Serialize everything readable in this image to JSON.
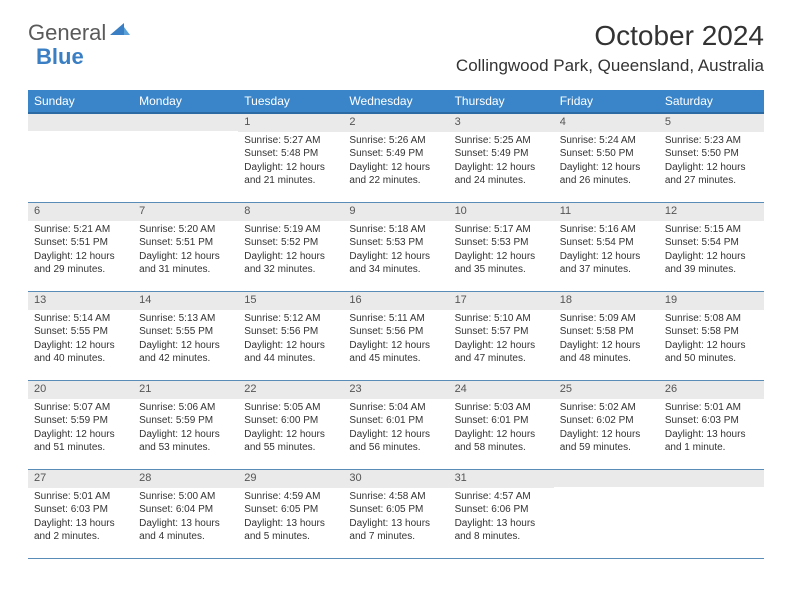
{
  "brand": {
    "part1": "General",
    "part2": "Blue",
    "color_gray": "#5a5a5a",
    "color_blue": "#3a7fc4"
  },
  "title": "October 2024",
  "location": "Collingwood Park, Queensland, Australia",
  "colors": {
    "header_bg": "#3a85c9",
    "header_border": "#2c6aa3",
    "row_border": "#5a8cb8",
    "daynum_bg": "#eaeaea",
    "text": "#333333"
  },
  "day_headers": [
    "Sunday",
    "Monday",
    "Tuesday",
    "Wednesday",
    "Thursday",
    "Friday",
    "Saturday"
  ],
  "weeks": [
    [
      null,
      null,
      {
        "n": "1",
        "sr": "Sunrise: 5:27 AM",
        "ss": "Sunset: 5:48 PM",
        "d1": "Daylight: 12 hours",
        "d2": "and 21 minutes."
      },
      {
        "n": "2",
        "sr": "Sunrise: 5:26 AM",
        "ss": "Sunset: 5:49 PM",
        "d1": "Daylight: 12 hours",
        "d2": "and 22 minutes."
      },
      {
        "n": "3",
        "sr": "Sunrise: 5:25 AM",
        "ss": "Sunset: 5:49 PM",
        "d1": "Daylight: 12 hours",
        "d2": "and 24 minutes."
      },
      {
        "n": "4",
        "sr": "Sunrise: 5:24 AM",
        "ss": "Sunset: 5:50 PM",
        "d1": "Daylight: 12 hours",
        "d2": "and 26 minutes."
      },
      {
        "n": "5",
        "sr": "Sunrise: 5:23 AM",
        "ss": "Sunset: 5:50 PM",
        "d1": "Daylight: 12 hours",
        "d2": "and 27 minutes."
      }
    ],
    [
      {
        "n": "6",
        "sr": "Sunrise: 5:21 AM",
        "ss": "Sunset: 5:51 PM",
        "d1": "Daylight: 12 hours",
        "d2": "and 29 minutes."
      },
      {
        "n": "7",
        "sr": "Sunrise: 5:20 AM",
        "ss": "Sunset: 5:51 PM",
        "d1": "Daylight: 12 hours",
        "d2": "and 31 minutes."
      },
      {
        "n": "8",
        "sr": "Sunrise: 5:19 AM",
        "ss": "Sunset: 5:52 PM",
        "d1": "Daylight: 12 hours",
        "d2": "and 32 minutes."
      },
      {
        "n": "9",
        "sr": "Sunrise: 5:18 AM",
        "ss": "Sunset: 5:53 PM",
        "d1": "Daylight: 12 hours",
        "d2": "and 34 minutes."
      },
      {
        "n": "10",
        "sr": "Sunrise: 5:17 AM",
        "ss": "Sunset: 5:53 PM",
        "d1": "Daylight: 12 hours",
        "d2": "and 35 minutes."
      },
      {
        "n": "11",
        "sr": "Sunrise: 5:16 AM",
        "ss": "Sunset: 5:54 PM",
        "d1": "Daylight: 12 hours",
        "d2": "and 37 minutes."
      },
      {
        "n": "12",
        "sr": "Sunrise: 5:15 AM",
        "ss": "Sunset: 5:54 PM",
        "d1": "Daylight: 12 hours",
        "d2": "and 39 minutes."
      }
    ],
    [
      {
        "n": "13",
        "sr": "Sunrise: 5:14 AM",
        "ss": "Sunset: 5:55 PM",
        "d1": "Daylight: 12 hours",
        "d2": "and 40 minutes."
      },
      {
        "n": "14",
        "sr": "Sunrise: 5:13 AM",
        "ss": "Sunset: 5:55 PM",
        "d1": "Daylight: 12 hours",
        "d2": "and 42 minutes."
      },
      {
        "n": "15",
        "sr": "Sunrise: 5:12 AM",
        "ss": "Sunset: 5:56 PM",
        "d1": "Daylight: 12 hours",
        "d2": "and 44 minutes."
      },
      {
        "n": "16",
        "sr": "Sunrise: 5:11 AM",
        "ss": "Sunset: 5:56 PM",
        "d1": "Daylight: 12 hours",
        "d2": "and 45 minutes."
      },
      {
        "n": "17",
        "sr": "Sunrise: 5:10 AM",
        "ss": "Sunset: 5:57 PM",
        "d1": "Daylight: 12 hours",
        "d2": "and 47 minutes."
      },
      {
        "n": "18",
        "sr": "Sunrise: 5:09 AM",
        "ss": "Sunset: 5:58 PM",
        "d1": "Daylight: 12 hours",
        "d2": "and 48 minutes."
      },
      {
        "n": "19",
        "sr": "Sunrise: 5:08 AM",
        "ss": "Sunset: 5:58 PM",
        "d1": "Daylight: 12 hours",
        "d2": "and 50 minutes."
      }
    ],
    [
      {
        "n": "20",
        "sr": "Sunrise: 5:07 AM",
        "ss": "Sunset: 5:59 PM",
        "d1": "Daylight: 12 hours",
        "d2": "and 51 minutes."
      },
      {
        "n": "21",
        "sr": "Sunrise: 5:06 AM",
        "ss": "Sunset: 5:59 PM",
        "d1": "Daylight: 12 hours",
        "d2": "and 53 minutes."
      },
      {
        "n": "22",
        "sr": "Sunrise: 5:05 AM",
        "ss": "Sunset: 6:00 PM",
        "d1": "Daylight: 12 hours",
        "d2": "and 55 minutes."
      },
      {
        "n": "23",
        "sr": "Sunrise: 5:04 AM",
        "ss": "Sunset: 6:01 PM",
        "d1": "Daylight: 12 hours",
        "d2": "and 56 minutes."
      },
      {
        "n": "24",
        "sr": "Sunrise: 5:03 AM",
        "ss": "Sunset: 6:01 PM",
        "d1": "Daylight: 12 hours",
        "d2": "and 58 minutes."
      },
      {
        "n": "25",
        "sr": "Sunrise: 5:02 AM",
        "ss": "Sunset: 6:02 PM",
        "d1": "Daylight: 12 hours",
        "d2": "and 59 minutes."
      },
      {
        "n": "26",
        "sr": "Sunrise: 5:01 AM",
        "ss": "Sunset: 6:03 PM",
        "d1": "Daylight: 13 hours",
        "d2": "and 1 minute."
      }
    ],
    [
      {
        "n": "27",
        "sr": "Sunrise: 5:01 AM",
        "ss": "Sunset: 6:03 PM",
        "d1": "Daylight: 13 hours",
        "d2": "and 2 minutes."
      },
      {
        "n": "28",
        "sr": "Sunrise: 5:00 AM",
        "ss": "Sunset: 6:04 PM",
        "d1": "Daylight: 13 hours",
        "d2": "and 4 minutes."
      },
      {
        "n": "29",
        "sr": "Sunrise: 4:59 AM",
        "ss": "Sunset: 6:05 PM",
        "d1": "Daylight: 13 hours",
        "d2": "and 5 minutes."
      },
      {
        "n": "30",
        "sr": "Sunrise: 4:58 AM",
        "ss": "Sunset: 6:05 PM",
        "d1": "Daylight: 13 hours",
        "d2": "and 7 minutes."
      },
      {
        "n": "31",
        "sr": "Sunrise: 4:57 AM",
        "ss": "Sunset: 6:06 PM",
        "d1": "Daylight: 13 hours",
        "d2": "and 8 minutes."
      },
      null,
      null
    ]
  ]
}
